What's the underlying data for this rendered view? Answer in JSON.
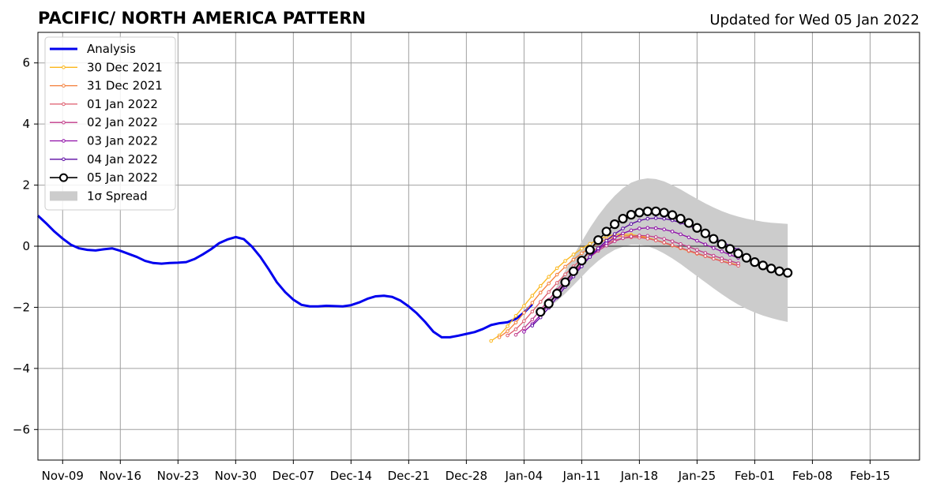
{
  "chart_data": {
    "type": "line",
    "title": "PACIFIC/ NORTH AMERICA PATTERN",
    "subtitle": "Updated for Wed 05 Jan 2022",
    "x_unit": "date",
    "xlim": [
      "2021-11-06",
      "2022-02-21"
    ],
    "ylim": [
      -7,
      7
    ],
    "yticks": [
      -6,
      -4,
      -2,
      0,
      2,
      4,
      6
    ],
    "ytick_labels": [
      "−6",
      "−4",
      "−2",
      "0",
      "2",
      "4",
      "6"
    ],
    "xticks": [
      "2021-11-09",
      "2021-11-16",
      "2021-11-23",
      "2021-11-30",
      "2021-12-07",
      "2021-12-14",
      "2021-12-21",
      "2021-12-28",
      "2022-01-04",
      "2022-01-11",
      "2022-01-18",
      "2022-01-25",
      "2022-02-01",
      "2022-02-08",
      "2022-02-15"
    ],
    "xtick_labels": [
      "Nov-09",
      "Nov-16",
      "Nov-23",
      "Nov-30",
      "Dec-07",
      "Dec-14",
      "Dec-21",
      "Dec-28",
      "Jan-04",
      "Jan-11",
      "Jan-18",
      "Jan-25",
      "Feb-01",
      "Feb-08",
      "Feb-15"
    ],
    "grid": true,
    "legend_position": "top-left",
    "analysis": {
      "name": "Analysis",
      "color": "#0000ee",
      "start": "2021-11-06",
      "values": [
        1.0,
        0.75,
        0.48,
        0.25,
        0.05,
        -0.07,
        -0.12,
        -0.14,
        -0.1,
        -0.07,
        -0.15,
        -0.25,
        -0.35,
        -0.48,
        -0.55,
        -0.57,
        -0.55,
        -0.54,
        -0.52,
        -0.42,
        -0.27,
        -0.1,
        0.1,
        0.22,
        0.3,
        0.23,
        -0.02,
        -0.35,
        -0.75,
        -1.18,
        -1.5,
        -1.75,
        -1.92,
        -1.97,
        -1.97,
        -1.95,
        -1.96,
        -1.97,
        -1.93,
        -1.84,
        -1.72,
        -1.64,
        -1.62,
        -1.66,
        -1.78,
        -1.97,
        -2.2,
        -2.48,
        -2.8,
        -2.98,
        -2.98,
        -2.93,
        -2.87,
        -2.81,
        -2.71,
        -2.58,
        -2.52,
        -2.49,
        -2.38,
        -2.17,
        -1.9
      ]
    },
    "forecasts": [
      {
        "name": "30 Dec 2021",
        "color": "#fbb61a",
        "start": "2021-12-31",
        "values": [
          -3.1,
          -2.92,
          -2.62,
          -2.28,
          -1.95,
          -1.62,
          -1.3,
          -1.0,
          -0.72,
          -0.48,
          -0.27,
          -0.08,
          0.08,
          0.22,
          0.32,
          0.38,
          0.4,
          0.38,
          0.34,
          0.28,
          0.2,
          0.12,
          0.03,
          -0.06,
          -0.15,
          -0.24,
          -0.32,
          -0.4,
          -0.48,
          -0.55,
          -0.62
        ]
      },
      {
        "name": "31 Dec 2021",
        "color": "#f47f3a",
        "start": "2022-01-01",
        "values": [
          -2.98,
          -2.78,
          -2.5,
          -2.18,
          -1.85,
          -1.52,
          -1.22,
          -0.93,
          -0.67,
          -0.44,
          -0.23,
          -0.05,
          0.1,
          0.22,
          0.3,
          0.34,
          0.34,
          0.31,
          0.26,
          0.19,
          0.11,
          0.02,
          -0.07,
          -0.16,
          -0.25,
          -0.33,
          -0.41,
          -0.49,
          -0.56,
          -0.63
        ]
      },
      {
        "name": "01 Jan 2022",
        "color": "#dd5a6b",
        "start": "2022-01-02",
        "values": [
          -2.92,
          -2.72,
          -2.45,
          -2.14,
          -1.82,
          -1.5,
          -1.2,
          -0.92,
          -0.66,
          -0.43,
          -0.22,
          -0.05,
          0.09,
          0.19,
          0.26,
          0.29,
          0.28,
          0.25,
          0.19,
          0.12,
          0.04,
          -0.05,
          -0.14,
          -0.23,
          -0.32,
          -0.41,
          -0.49,
          -0.57,
          -0.64
        ]
      },
      {
        "name": "02 Jan 2022",
        "color": "#c13a88",
        "start": "2022-01-03",
        "values": [
          -2.9,
          -2.68,
          -2.4,
          -2.08,
          -1.75,
          -1.43,
          -1.12,
          -0.84,
          -0.58,
          -0.35,
          -0.15,
          0.02,
          0.16,
          0.26,
          0.32,
          0.35,
          0.34,
          0.3,
          0.24,
          0.16,
          0.07,
          -0.02,
          -0.12,
          -0.22,
          -0.31,
          -0.4,
          -0.48,
          -0.56
        ]
      },
      {
        "name": "03 Jan 2022",
        "color": "#8e0ca7",
        "start": "2022-01-04",
        "values": [
          -2.8,
          -2.55,
          -2.25,
          -1.92,
          -1.58,
          -1.24,
          -0.92,
          -0.62,
          -0.35,
          -0.11,
          0.1,
          0.28,
          0.42,
          0.52,
          0.58,
          0.6,
          0.59,
          0.55,
          0.48,
          0.39,
          0.29,
          0.18,
          0.06,
          -0.06,
          -0.17,
          -0.28,
          -0.38
        ]
      },
      {
        "name": "04 Jan 2022",
        "color": "#5b0aa3",
        "start": "2022-01-05",
        "values": [
          -2.6,
          -2.33,
          -2.02,
          -1.68,
          -1.33,
          -0.99,
          -0.66,
          -0.35,
          -0.07,
          0.18,
          0.4,
          0.58,
          0.73,
          0.84,
          0.9,
          0.92,
          0.9,
          0.85,
          0.77,
          0.67,
          0.56,
          0.43,
          0.29,
          0.15,
          0.01,
          -0.12
        ]
      },
      {
        "name": "05 Jan 2022",
        "color": "#000000",
        "start": "2022-01-06",
        "values": [
          -2.15,
          -1.88,
          -1.55,
          -1.18,
          -0.82,
          -0.47,
          -0.12,
          0.2,
          0.48,
          0.72,
          0.9,
          1.03,
          1.1,
          1.14,
          1.14,
          1.1,
          1.02,
          0.9,
          0.76,
          0.6,
          0.42,
          0.24,
          0.07,
          -0.09,
          -0.24,
          -0.38,
          -0.52,
          -0.63,
          -0.73,
          -0.82,
          -0.87
        ]
      }
    ],
    "spread": {
      "name": "1σ Spread",
      "color": "#cccccc",
      "start": "2022-01-06",
      "lower": [
        -2.15,
        -2.0,
        -1.8,
        -1.55,
        -1.28,
        -1.0,
        -0.72,
        -0.48,
        -0.28,
        -0.12,
        -0.02,
        0.05,
        0.05,
        0.0,
        -0.1,
        -0.24,
        -0.4,
        -0.58,
        -0.78,
        -0.98,
        -1.18,
        -1.38,
        -1.57,
        -1.75,
        -1.91,
        -2.05,
        -2.17,
        -2.27,
        -2.35,
        -2.42,
        -2.48
      ],
      "upper": [
        -2.15,
        -1.75,
        -1.3,
        -0.8,
        -0.3,
        0.15,
        0.6,
        1.0,
        1.35,
        1.65,
        1.9,
        2.08,
        2.18,
        2.22,
        2.2,
        2.12,
        2.0,
        1.86,
        1.7,
        1.55,
        1.4,
        1.27,
        1.15,
        1.05,
        0.97,
        0.9,
        0.85,
        0.8,
        0.77,
        0.75,
        0.73
      ]
    },
    "legend": [
      "Analysis",
      "30 Dec 2021",
      "31 Dec 2021",
      "01 Jan 2022",
      "02 Jan 2022",
      "03 Jan 2022",
      "04 Jan 2022",
      "05 Jan 2022",
      "1σ Spread"
    ]
  }
}
